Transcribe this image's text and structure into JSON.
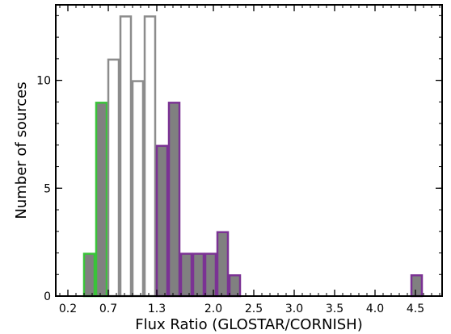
{
  "chart_data": {
    "type": "bar",
    "subtype": "histogram",
    "xlabel": "Flux Ratio (GLOSTAR/CORNISH)",
    "ylabel": "Number of sources",
    "xlim": [
      0.05,
      4.83
    ],
    "ylim": [
      0,
      13.5
    ],
    "bin_width": 0.15,
    "xticks": [
      0.2,
      0.7,
      1.3,
      2.0,
      2.5,
      3.0,
      3.5,
      4.0,
      4.5
    ],
    "xtick_labels": [
      "0.2",
      "0.7",
      "1.3",
      "2.0",
      "2.5",
      "3.0",
      "3.5",
      "4.0",
      "4.5"
    ],
    "yticks": [
      0,
      5,
      10
    ],
    "yminor_step": 1,
    "xminor_step": 0.1,
    "grid": false,
    "legend": "none",
    "series": [
      {
        "style": "filled",
        "fill": "#808080",
        "edge": "#39c339",
        "bins": [
          {
            "x0": 0.39,
            "x1": 0.54,
            "value": 2
          },
          {
            "x0": 0.54,
            "x1": 0.69,
            "value": 9
          }
        ]
      },
      {
        "style": "outline",
        "fill": "none",
        "edge": "#8c8c8c",
        "bins": [
          {
            "x0": 0.69,
            "x1": 0.84,
            "value": 11
          },
          {
            "x0": 0.84,
            "x1": 0.99,
            "value": 13
          },
          {
            "x0": 0.99,
            "x1": 1.14,
            "value": 10
          },
          {
            "x0": 1.14,
            "x1": 1.29,
            "value": 13
          }
        ]
      },
      {
        "style": "filled",
        "fill": "#808080",
        "edge": "#7b3294",
        "bins": [
          {
            "x0": 1.29,
            "x1": 1.44,
            "value": 7
          },
          {
            "x0": 1.44,
            "x1": 1.59,
            "value": 9
          },
          {
            "x0": 1.59,
            "x1": 1.74,
            "value": 2
          },
          {
            "x0": 1.74,
            "x1": 1.89,
            "value": 2
          },
          {
            "x0": 1.89,
            "x1": 2.04,
            "value": 2
          },
          {
            "x0": 2.04,
            "x1": 2.19,
            "value": 3
          },
          {
            "x0": 2.19,
            "x1": 2.34,
            "value": 1
          },
          {
            "x0": 4.44,
            "x1": 4.59,
            "value": 1
          }
        ]
      }
    ]
  }
}
